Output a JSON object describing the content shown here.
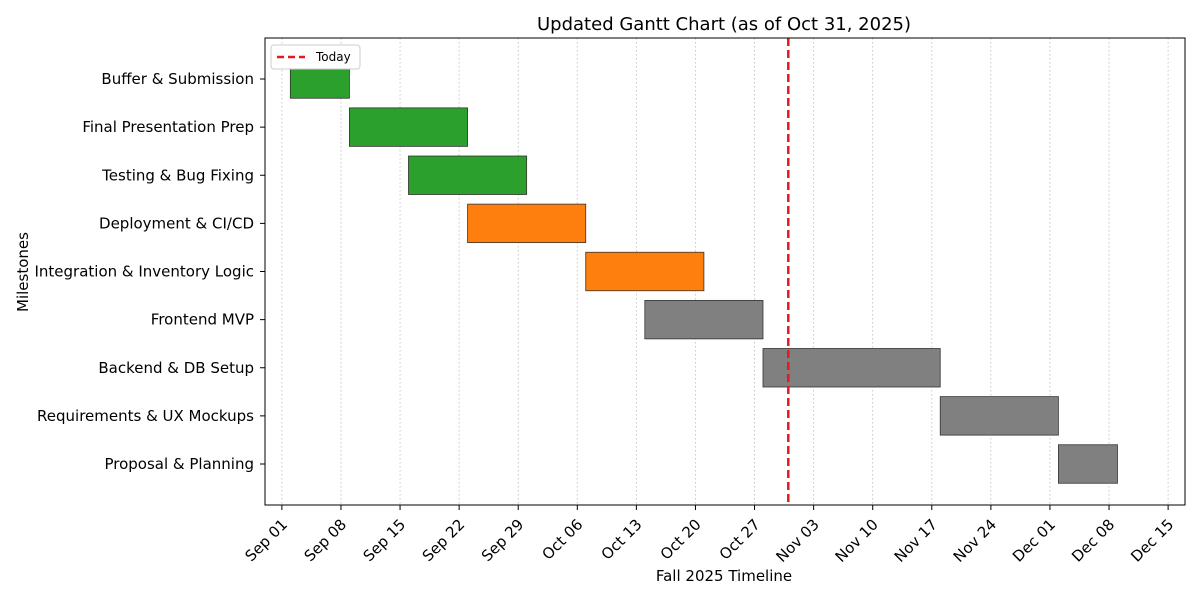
{
  "chart_data": {
    "type": "gantt",
    "title": "Updated Gantt Chart (as of Oct 31, 2025)",
    "xlabel": "Fall 2025 Timeline",
    "ylabel": "Milestones",
    "x_ticks": [
      "Sep 01",
      "Sep 08",
      "Sep 15",
      "Sep 22",
      "Sep 29",
      "Oct 06",
      "Oct 13",
      "Oct 20",
      "Oct 27",
      "Nov 03",
      "Nov 10",
      "Nov 17",
      "Nov 24",
      "Dec 01",
      "Dec 08",
      "Dec 15"
    ],
    "x_range": [
      "2025-08-30",
      "2025-12-17"
    ],
    "grid": "x-dotted",
    "legend": {
      "position": "top-left",
      "entries": [
        {
          "label": "Today",
          "color": "#e41a1c",
          "style": "dashed"
        }
      ]
    },
    "today": "2025-10-31",
    "tasks": [
      {
        "name": "Buffer & Submission",
        "start": "2025-09-02",
        "end": "2025-09-09",
        "color": "#2ca02c"
      },
      {
        "name": "Final Presentation Prep",
        "start": "2025-09-09",
        "end": "2025-09-23",
        "color": "#2ca02c"
      },
      {
        "name": "Testing & Bug Fixing",
        "start": "2025-09-16",
        "end": "2025-09-30",
        "color": "#2ca02c"
      },
      {
        "name": "Deployment & CI/CD",
        "start": "2025-09-23",
        "end": "2025-10-07",
        "color": "#ff7f0e"
      },
      {
        "name": "Integration & Inventory Logic",
        "start": "2025-10-07",
        "end": "2025-10-21",
        "color": "#ff7f0e"
      },
      {
        "name": "Frontend MVP",
        "start": "2025-10-14",
        "end": "2025-10-28",
        "color": "#808080"
      },
      {
        "name": "Backend & DB Setup",
        "start": "2025-10-28",
        "end": "2025-11-18",
        "color": "#808080"
      },
      {
        "name": "Requirements & UX Mockups",
        "start": "2025-11-18",
        "end": "2025-12-02",
        "color": "#808080"
      },
      {
        "name": "Proposal & Planning",
        "start": "2025-12-02",
        "end": "2025-12-09",
        "color": "#808080"
      }
    ]
  }
}
